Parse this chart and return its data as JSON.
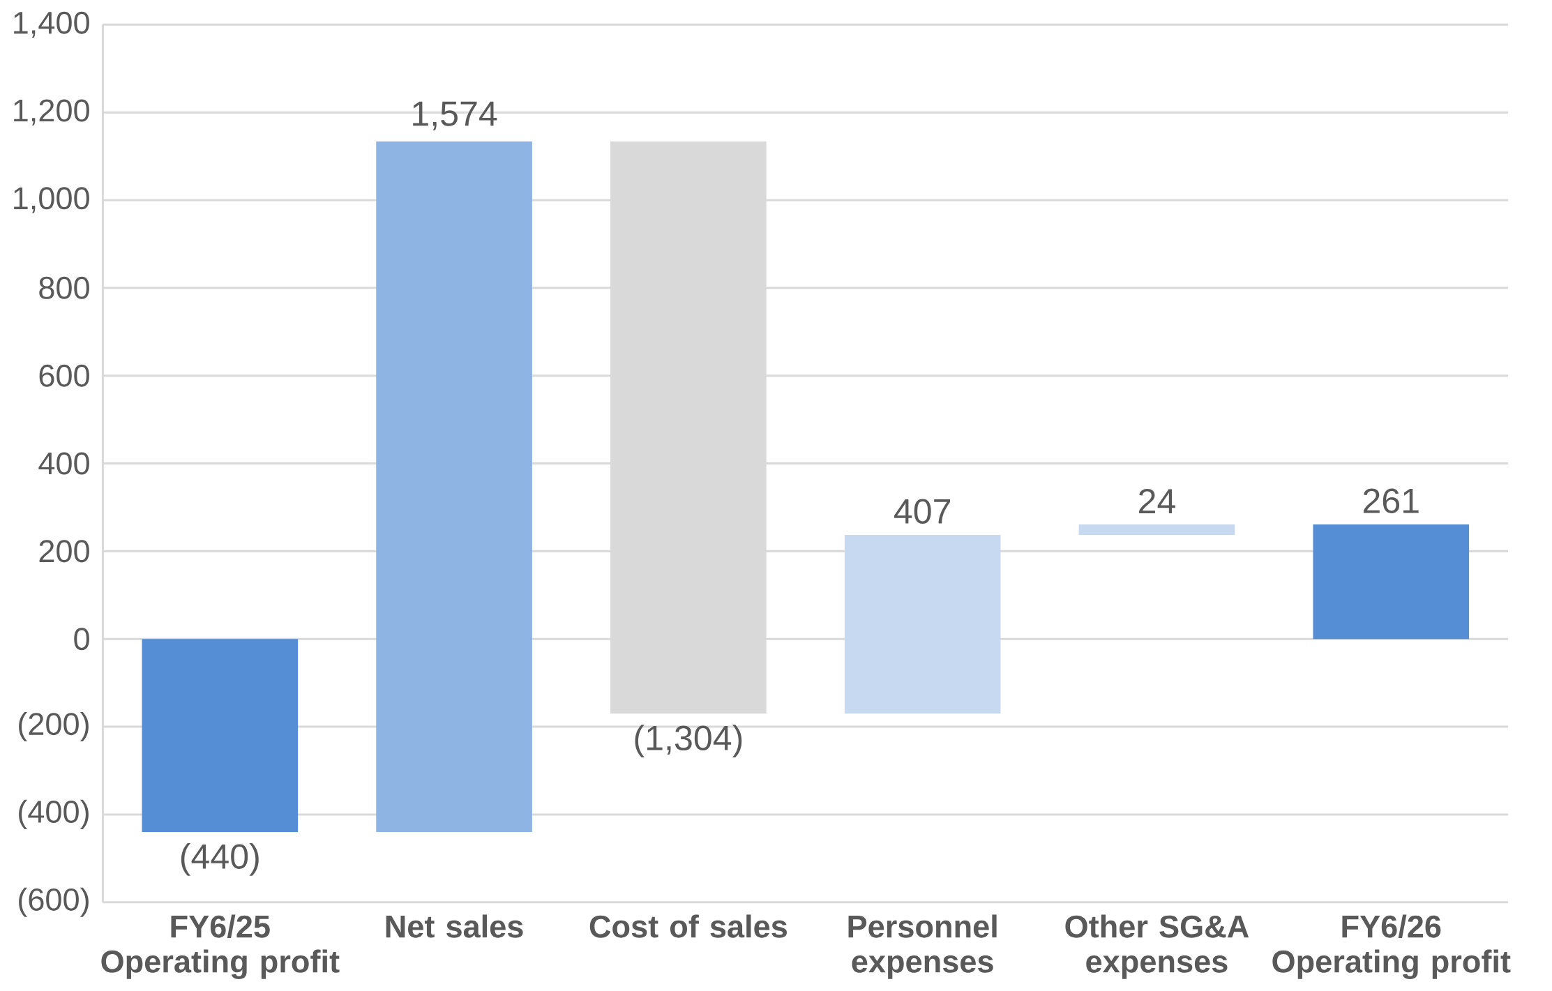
{
  "chart_data": {
    "type": "bar",
    "categories": [
      "FY6/25 Operating profit",
      "Net sales",
      "Cost of sales",
      "Personnel expenses",
      "Other SG&A expenses",
      "FY6/26 Operating profit"
    ],
    "values": [
      -440,
      1574,
      -1304,
      407,
      24,
      261
    ],
    "base": [
      0,
      -440,
      1134,
      -170,
      237,
      0
    ],
    "colors": [
      "#558ed5",
      "#8eb4e3",
      "#d9d9d9",
      "#c6d9f1",
      "#c6d9f1",
      "#558ed5"
    ],
    "value_labels": [
      "(440)",
      "1,574",
      "(1,304)",
      "407",
      "24",
      "261"
    ],
    "ylim": [
      -600,
      1400
    ],
    "yticks": [
      {
        "value": -600,
        "label": "(600)"
      },
      {
        "value": -400,
        "label": "(400)"
      },
      {
        "value": -200,
        "label": "(200)"
      },
      0,
      200,
      400,
      600,
      800,
      {
        "value": 1000,
        "label": "1,000"
      },
      {
        "value": 1200,
        "label": "1,200"
      },
      {
        "value": 1400,
        "label": "1,400"
      }
    ],
    "grid": "y"
  }
}
